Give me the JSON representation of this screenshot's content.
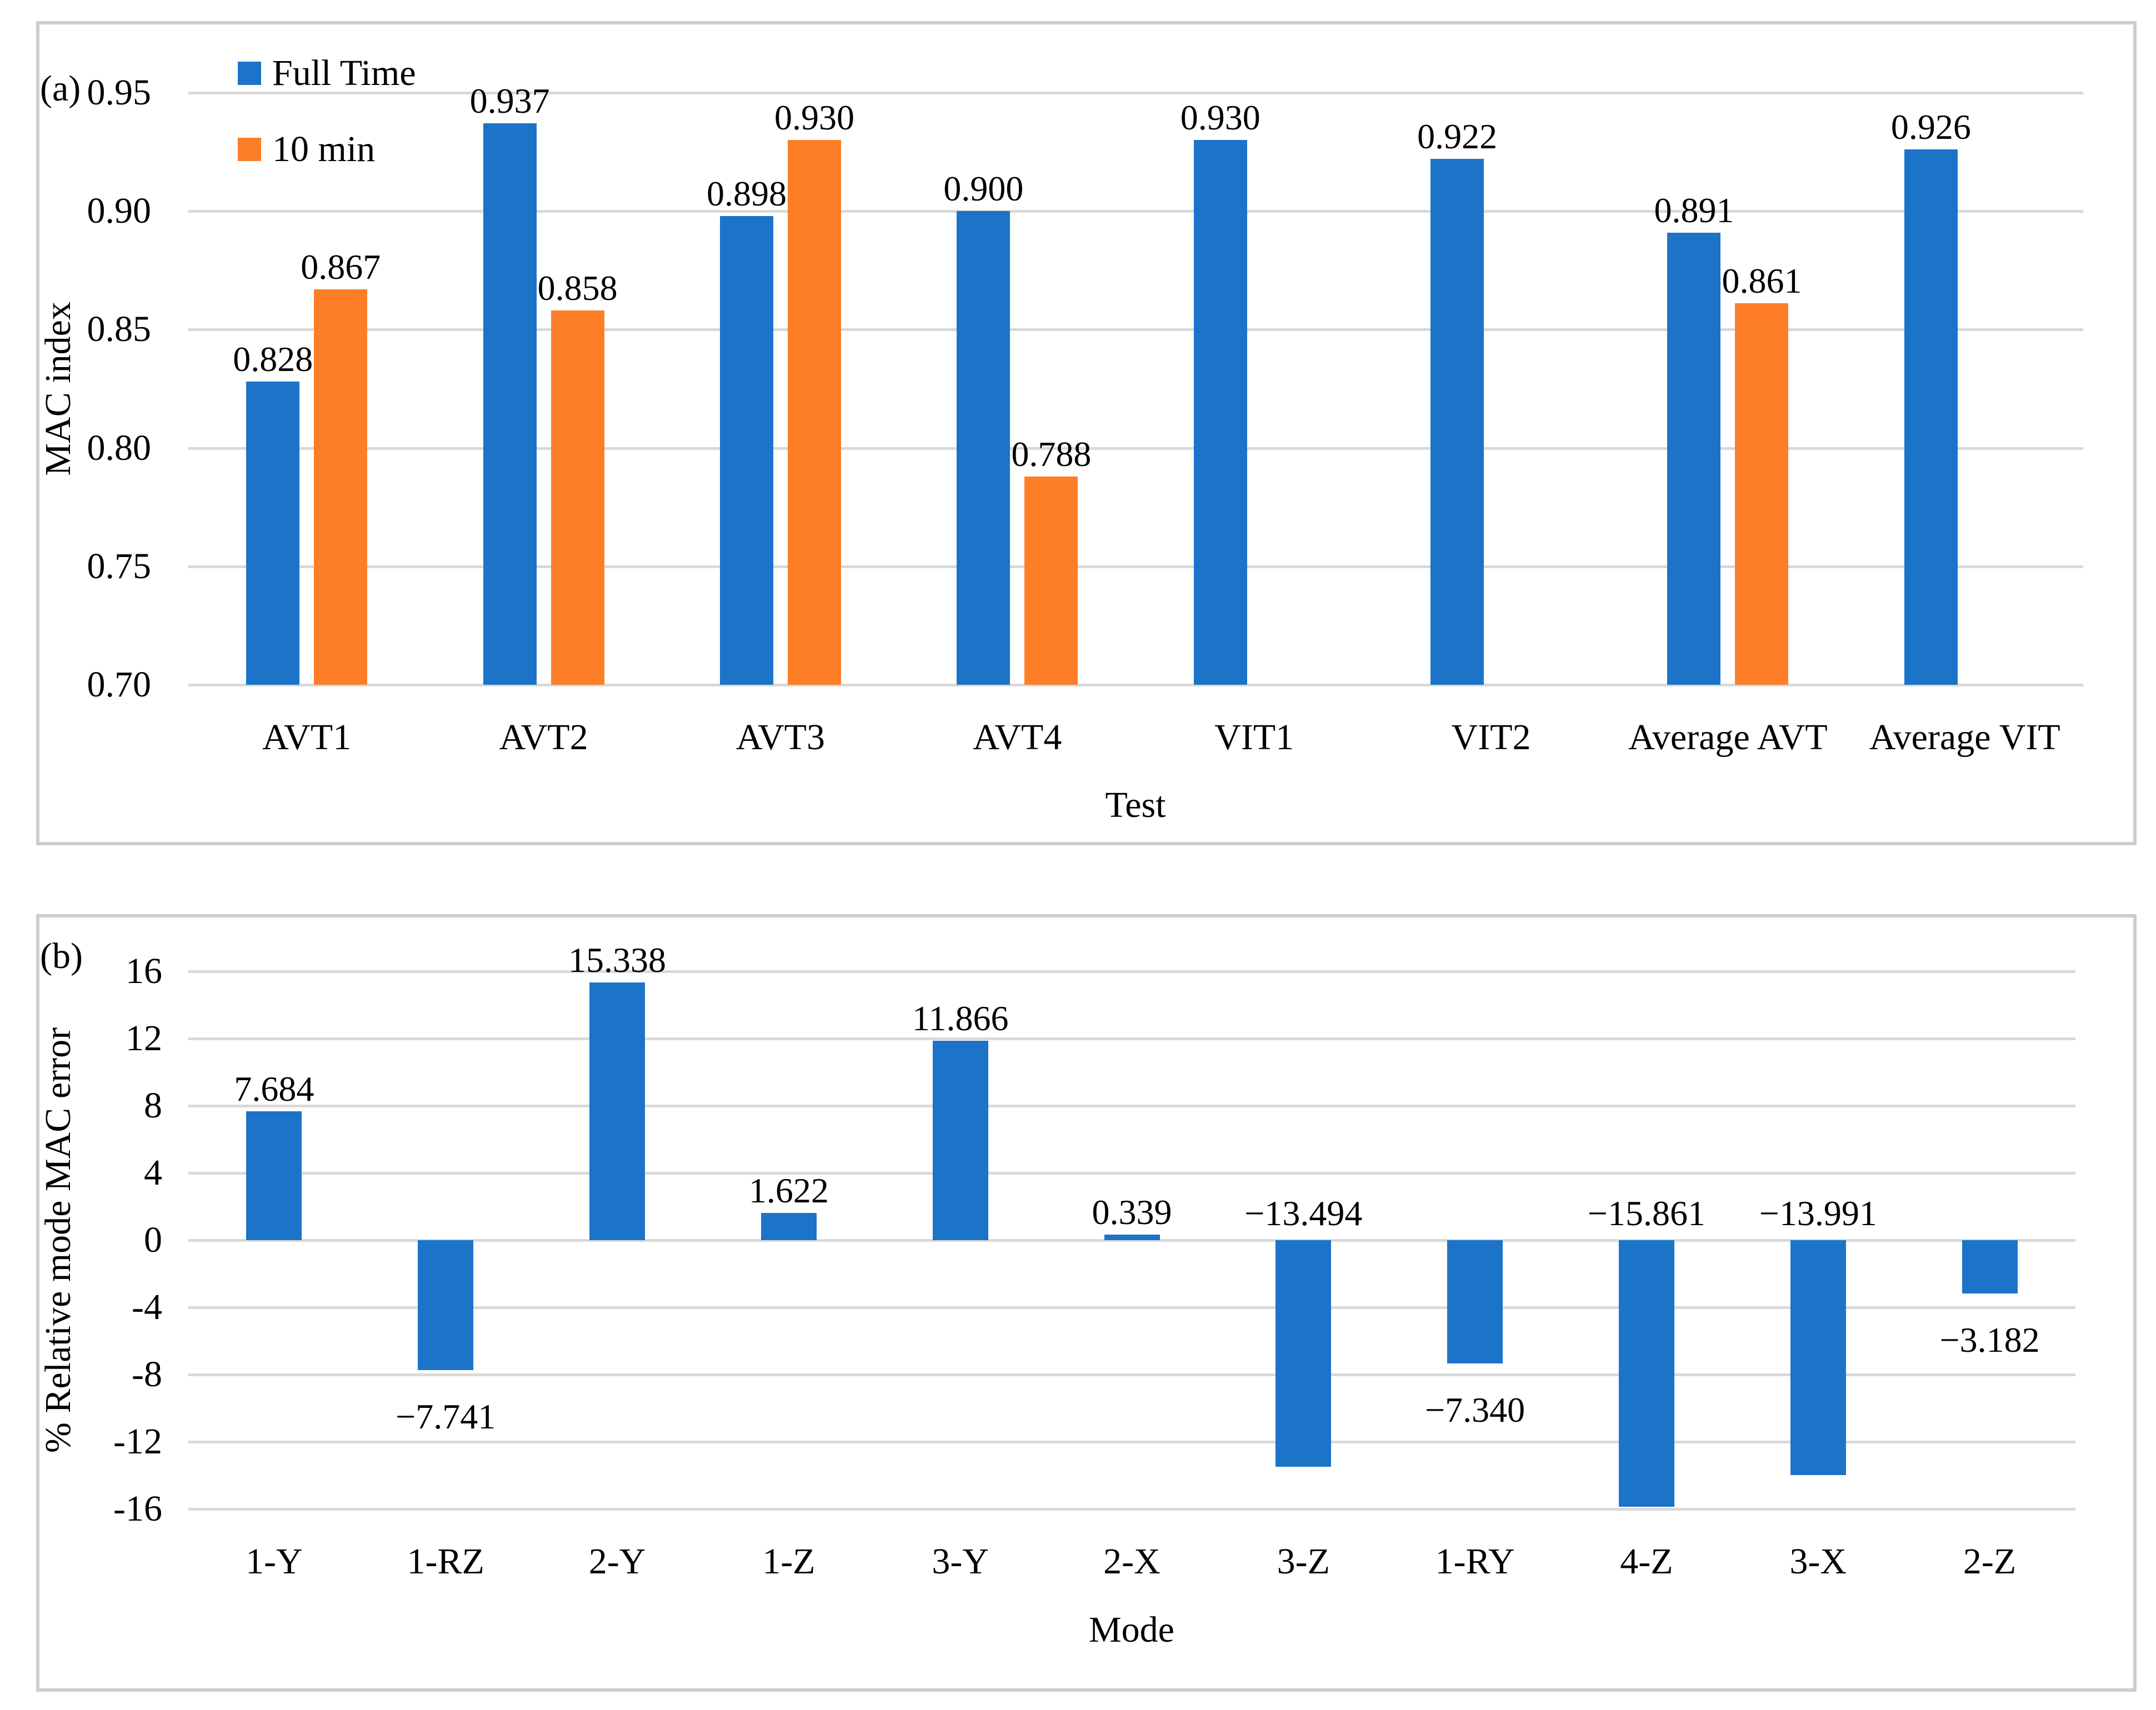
{
  "chart_data": [
    {
      "id": "panel-a",
      "type": "bar",
      "panel_label": "(a)",
      "xlabel": "Test",
      "ylabel": "MAC index",
      "ylim": [
        0.7,
        0.95
      ],
      "y_ticks": [
        "0.95",
        "0.90",
        "0.85",
        "0.80",
        "0.75",
        "0.70"
      ],
      "grid": true,
      "legend_position": "top-left-inside",
      "categories": [
        "AVT1",
        "AVT2",
        "AVT3",
        "AVT4",
        "VIT1",
        "VIT2",
        "Average AVT",
        "Average VIT"
      ],
      "series": [
        {
          "name": "Full Time",
          "color": "#1b74c8",
          "values": [
            0.828,
            0.937,
            0.898,
            0.9,
            0.93,
            0.922,
            0.891,
            0.926
          ],
          "labels": [
            "0.828",
            "0.937",
            "0.898",
            "0.900",
            "0.930",
            "0.922",
            "0.891",
            "0.926"
          ]
        },
        {
          "name": "10 min",
          "color": "#fd7e27",
          "values": [
            0.867,
            0.858,
            0.93,
            0.788,
            null,
            null,
            0.861,
            null
          ],
          "labels": [
            "0.867",
            "0.858",
            "0.930",
            "0.788",
            null,
            null,
            "0.861",
            null
          ]
        }
      ]
    },
    {
      "id": "panel-b",
      "type": "bar",
      "panel_label": "(b)",
      "xlabel": "Mode",
      "ylabel": "% Relative mode MAC error",
      "ylim": [
        -16,
        16
      ],
      "y_ticks": [
        "16",
        "12",
        "8",
        "4",
        "0",
        "-4",
        "-8",
        "-12",
        "-16"
      ],
      "grid": true,
      "bar_color": "#1b74c8",
      "categories": [
        "1-Y",
        "1-RZ",
        "2-Y",
        "1-Z",
        "3-Y",
        "2-X",
        "3-Z",
        "1-RY",
        "4-Z",
        "3-X",
        "2-Z"
      ],
      "values": [
        7.684,
        -7.741,
        15.338,
        1.622,
        11.866,
        0.339,
        -13.494,
        -7.34,
        -15.861,
        -13.991,
        -3.182
      ],
      "labels": [
        "7.684",
        "−7.741",
        "15.338",
        "1.622",
        "11.866",
        "0.339",
        "−13.494",
        "−7.340",
        "−15.861",
        "−13.991",
        "−3.182"
      ]
    }
  ],
  "style": {
    "grid_color": "#d9d9d9",
    "border_color": "#cccccc",
    "blue": "#1b74c8",
    "orange": "#fd7e27"
  }
}
